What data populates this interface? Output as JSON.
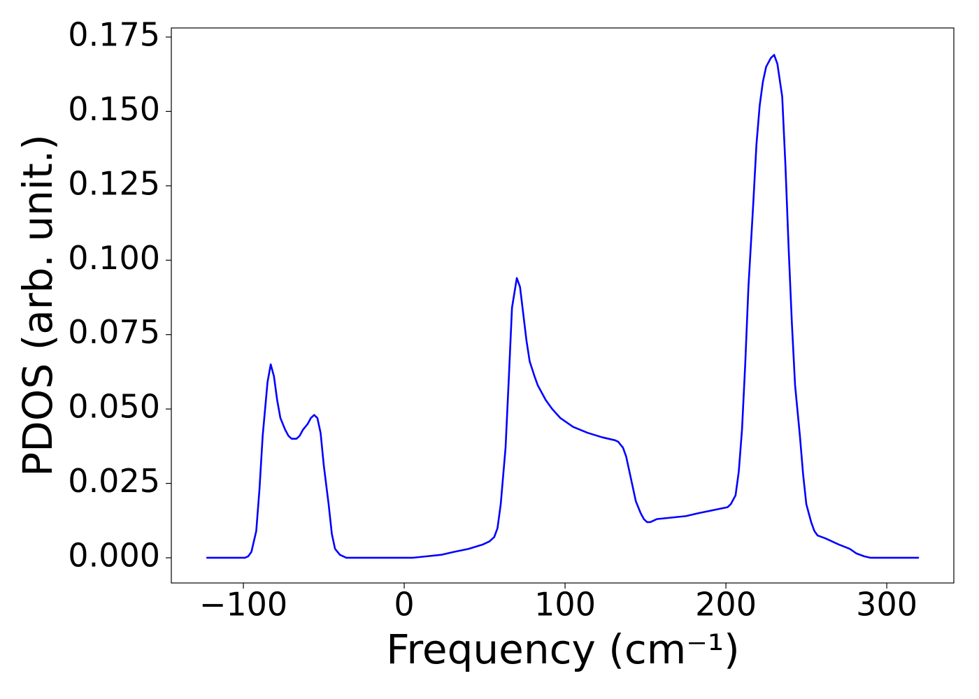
{
  "chart_data": {
    "type": "line",
    "xlabel": "Frequency (cm⁻¹)",
    "ylabel": "PDOS (arb. unit.)",
    "x": [
      -123,
      -99,
      -97,
      -95,
      -92,
      -90,
      -88,
      -85,
      -83,
      -81,
      -79,
      -77,
      -74,
      -72,
      -70,
      -67,
      -65,
      -63,
      -60,
      -58,
      -56,
      -54,
      -52,
      -50,
      -47,
      -45,
      -43,
      -40,
      -36,
      5,
      14,
      23,
      31,
      40,
      49,
      53,
      56,
      58,
      60,
      63,
      65,
      67,
      70,
      72,
      74,
      76,
      78,
      81,
      83,
      88,
      92,
      97,
      105,
      114,
      123,
      131,
      133,
      136,
      138,
      140,
      142,
      144,
      147,
      149,
      151,
      153,
      157,
      166,
      175,
      183,
      192,
      201,
      203,
      206,
      208,
      210,
      212,
      214,
      217,
      219,
      221,
      223,
      225,
      228,
      230,
      232,
      235,
      237,
      239,
      241,
      243,
      246,
      248,
      250,
      253,
      255,
      257,
      262,
      270,
      277,
      281,
      286,
      290,
      320
    ],
    "series": [
      {
        "name": "PDOS",
        "color": "#0000ff",
        "values": [
          0,
          0,
          0.0005,
          0.002,
          0.009,
          0.023,
          0.041,
          0.059,
          0.065,
          0.061,
          0.053,
          0.047,
          0.043,
          0.041,
          0.04,
          0.04,
          0.041,
          0.043,
          0.045,
          0.047,
          0.048,
          0.047,
          0.042,
          0.031,
          0.018,
          0.008,
          0.003,
          0.001,
          0,
          0,
          0.0005,
          0.001,
          0.002,
          0.003,
          0.0045,
          0.0055,
          0.007,
          0.01,
          0.018,
          0.037,
          0.06,
          0.084,
          0.094,
          0.091,
          0.082,
          0.073,
          0.066,
          0.061,
          0.058,
          0.053,
          0.05,
          0.047,
          0.044,
          0.042,
          0.0405,
          0.0395,
          0.039,
          0.037,
          0.034,
          0.029,
          0.024,
          0.019,
          0.015,
          0.013,
          0.012,
          0.012,
          0.013,
          0.0135,
          0.014,
          0.015,
          0.016,
          0.017,
          0.018,
          0.021,
          0.029,
          0.043,
          0.065,
          0.091,
          0.119,
          0.139,
          0.152,
          0.16,
          0.165,
          0.168,
          0.169,
          0.166,
          0.155,
          0.132,
          0.104,
          0.079,
          0.058,
          0.041,
          0.028,
          0.018,
          0.012,
          0.009,
          0.0075,
          0.0065,
          0.0045,
          0.003,
          0.0015,
          0.0005,
          0,
          0
        ]
      }
    ],
    "xlim": [
      -144.8,
      341.7
    ],
    "xticks": [
      {
        "value": -100,
        "label": "−100"
      },
      0,
      100,
      200,
      300
    ],
    "ylim": [
      -0.00846,
      0.17805
    ],
    "yticks": [
      {
        "value": 0,
        "label": "0.000"
      },
      {
        "value": 0.025,
        "label": "0.025"
      },
      {
        "value": 0.05,
        "label": "0.050"
      },
      {
        "value": 0.075,
        "label": "0.075"
      },
      {
        "value": 0.1,
        "label": "0.100"
      },
      {
        "value": 0.125,
        "label": "0.125"
      },
      {
        "value": 0.15,
        "label": "0.150"
      },
      {
        "value": 0.175,
        "label": "0.175"
      }
    ],
    "grid": false
  }
}
